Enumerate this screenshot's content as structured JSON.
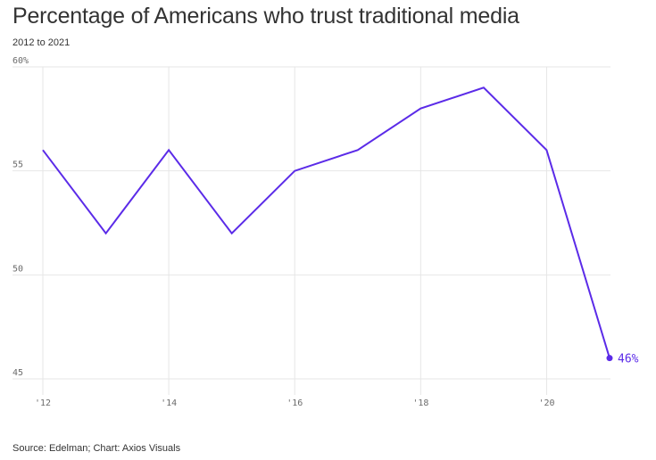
{
  "header": {
    "title": "Percentage of Americans who trust traditional media",
    "subtitle": "2012 to 2021"
  },
  "footer": {
    "source": "Source: Edelman; Chart: Axios Visuals"
  },
  "colors": {
    "line": "#5b2be8",
    "grid": "#e6e6e6",
    "text": "#333333"
  },
  "chart_data": {
    "type": "line",
    "title": "Percentage of Americans who trust traditional media",
    "subtitle": "2012 to 2021",
    "xlabel": "",
    "ylabel": "",
    "x": [
      2012,
      2013,
      2014,
      2015,
      2016,
      2017,
      2018,
      2019,
      2020,
      2021
    ],
    "series": [
      {
        "values": [
          56,
          52,
          56,
          52,
          55,
          56,
          58,
          59,
          56,
          46
        ]
      }
    ],
    "xlim": [
      2012,
      2021
    ],
    "ylim": [
      45,
      60
    ],
    "x_ticks": [
      2012,
      2014,
      2016,
      2018,
      2020
    ],
    "x_tick_labels": [
      "'12",
      "'14",
      "'16",
      "'18",
      "'20"
    ],
    "y_ticks": [
      45,
      50,
      55,
      60
    ],
    "y_tick_labels": [
      "45",
      "50",
      "55",
      "60%"
    ],
    "end_label": "46%",
    "grid": true,
    "legend": "none"
  }
}
